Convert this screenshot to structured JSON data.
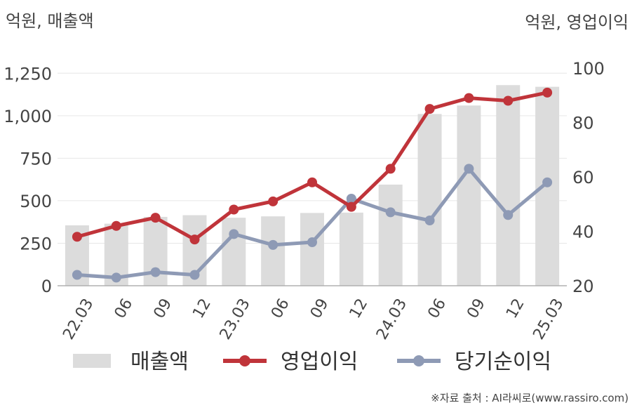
{
  "chart_data": {
    "type": "bar",
    "title": "",
    "y_left_label": "억원, 매출액",
    "y_right_label": "억원, 영업이익",
    "categories": [
      "22.03",
      "06",
      "09",
      "12",
      "23.03",
      "06",
      "09",
      "12",
      "24.03",
      "06",
      "09",
      "12",
      "25.03"
    ],
    "y_left_ticks": [
      "0",
      "250",
      "500",
      "750",
      "1,000",
      "1,250"
    ],
    "y_right_ticks": [
      "20",
      "40",
      "60",
      "80",
      "100"
    ],
    "ylim_left": [
      0,
      1280
    ],
    "ylim_right": [
      20,
      100
    ],
    "grid": true,
    "legend_position": "bottom",
    "series": [
      {
        "name": "매출액",
        "type": "bar",
        "axis": "left",
        "color": "#dcdcdc",
        "values": [
          355,
          365,
          405,
          415,
          400,
          408,
          428,
          430,
          595,
          1010,
          1060,
          1180,
          1170
        ]
      },
      {
        "name": "영업이익",
        "type": "line",
        "axis": "right",
        "color": "#c0343a",
        "values": [
          38,
          42,
          45,
          37,
          48,
          51,
          58,
          49,
          63,
          85,
          89,
          88,
          91
        ]
      },
      {
        "name": "당기순이익",
        "type": "line",
        "axis": "right",
        "color": "#8e9ab5",
        "values": [
          24,
          23,
          25,
          24,
          39,
          35,
          36,
          52,
          47,
          44,
          63,
          46,
          58
        ]
      }
    ],
    "source": "※자료 출처 : AI라씨로(www.rassiro.com)"
  }
}
